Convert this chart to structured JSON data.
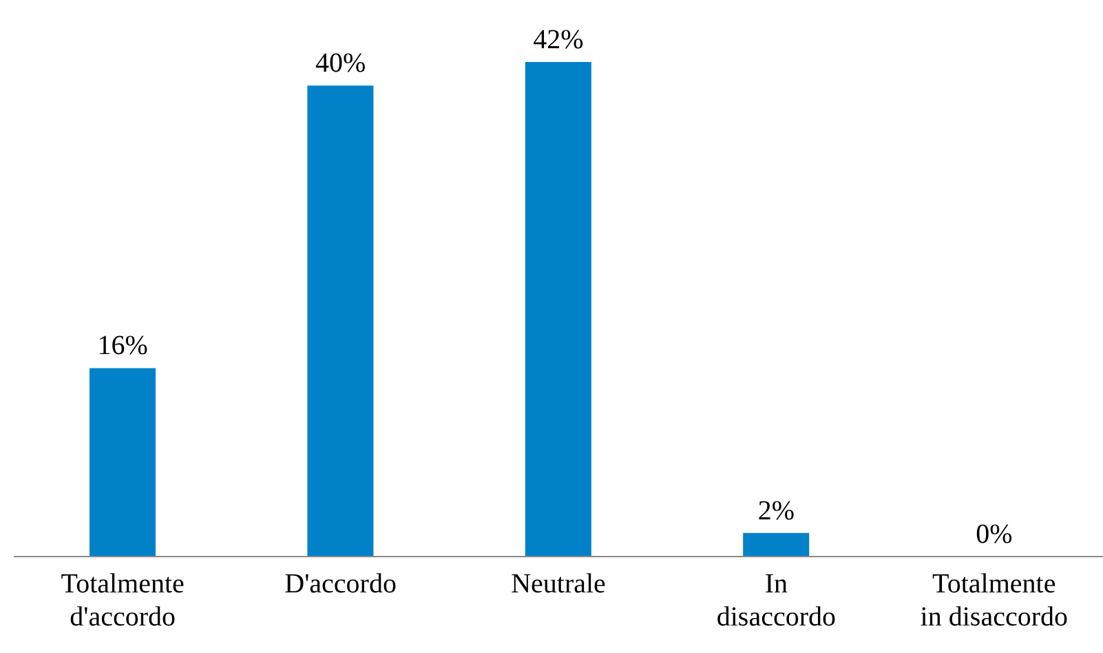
{
  "chart_data": {
    "type": "bar",
    "categories": [
      "Totalmente d'accordo",
      "D'accordo",
      "Neutrale",
      "In disaccordo",
      "Totalmente in disaccordo"
    ],
    "values": [
      16,
      40,
      42,
      2,
      0
    ],
    "value_labels": [
      "16%",
      "40%",
      "42%",
      "2%",
      "0%"
    ],
    "color": "#0081c8",
    "grid": false,
    "legend": false
  }
}
